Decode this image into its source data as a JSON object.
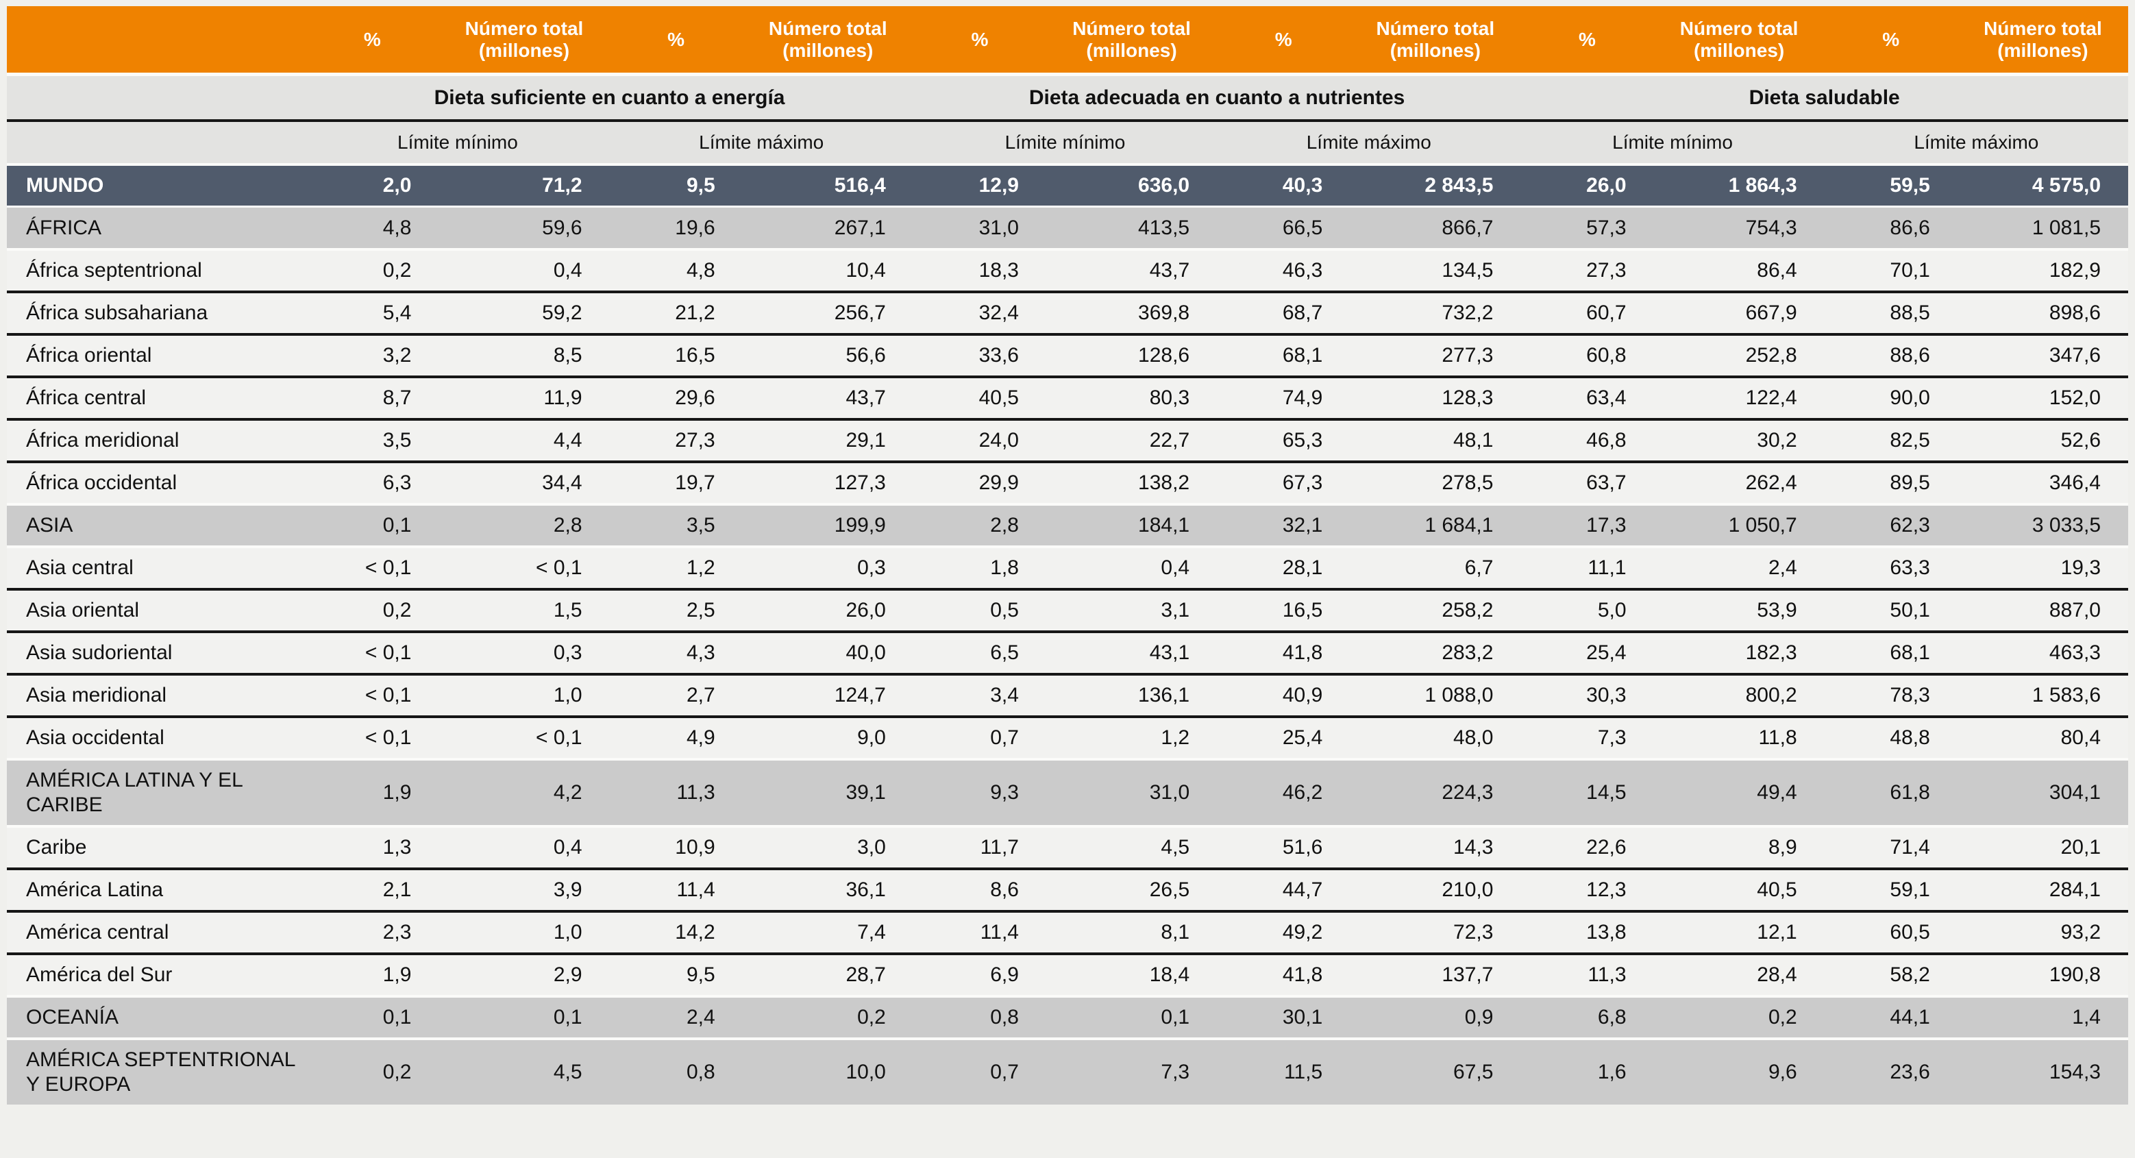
{
  "table": {
    "header": {
      "pct_label": "%",
      "total_label": "Número total (millones)"
    },
    "groups": [
      "Dieta suficiente en cuanto a energía",
      "Dieta adecuada en cuanto a nutrientes",
      "Dieta saludable"
    ],
    "limits": {
      "min": "Límite mínimo",
      "max": "Límite máximo"
    },
    "colors": {
      "header_orange": "#EF8200",
      "world_row": "#505B6C",
      "region_band": "#CBCBCB",
      "light_row": "#F2F2F0",
      "header_gray": "#E3E3E1"
    },
    "rows": [
      {
        "name": "MUNDO",
        "type": "world",
        "sep": "gap",
        "values": [
          "2,0",
          "71,2",
          "9,5",
          "516,4",
          "12,9",
          "636,0",
          "40,3",
          "2 843,5",
          "26,0",
          "1 864,3",
          "59,5",
          "4 575,0"
        ]
      },
      {
        "name": "ÁFRICA",
        "type": "band",
        "sep": "thin",
        "values": [
          "4,8",
          "59,6",
          "19,6",
          "267,1",
          "31,0",
          "413,5",
          "66,5",
          "866,7",
          "57,3",
          "754,3",
          "86,6",
          "1 081,5"
        ]
      },
      {
        "name": "África septentrional",
        "type": "light",
        "sep": "gap",
        "values": [
          "0,2",
          "0,4",
          "4,8",
          "10,4",
          "18,3",
          "43,7",
          "46,3",
          "134,5",
          "27,3",
          "86,4",
          "70,1",
          "182,9"
        ]
      },
      {
        "name": "África subsahariana",
        "type": "light",
        "sep": "line",
        "values": [
          "5,4",
          "59,2",
          "21,2",
          "256,7",
          "32,4",
          "369,8",
          "68,7",
          "732,2",
          "60,7",
          "667,9",
          "88,5",
          "898,6"
        ]
      },
      {
        "name": "África oriental",
        "type": "light",
        "sep": "line",
        "values": [
          "3,2",
          "8,5",
          "16,5",
          "56,6",
          "33,6",
          "128,6",
          "68,1",
          "277,3",
          "60,8",
          "252,8",
          "88,6",
          "347,6"
        ]
      },
      {
        "name": "África central",
        "type": "light",
        "sep": "line",
        "values": [
          "8,7",
          "11,9",
          "29,6",
          "43,7",
          "40,5",
          "80,3",
          "74,9",
          "128,3",
          "63,4",
          "122,4",
          "90,0",
          "152,0"
        ]
      },
      {
        "name": "África meridional",
        "type": "light",
        "sep": "line",
        "values": [
          "3,5",
          "4,4",
          "27,3",
          "29,1",
          "24,0",
          "22,7",
          "65,3",
          "48,1",
          "46,8",
          "30,2",
          "82,5",
          "52,6"
        ]
      },
      {
        "name": "África occidental",
        "type": "light",
        "sep": "line",
        "values": [
          "6,3",
          "34,4",
          "19,7",
          "127,3",
          "29,9",
          "138,2",
          "67,3",
          "278,5",
          "63,7",
          "262,4",
          "89,5",
          "346,4"
        ]
      },
      {
        "name": "ASIA",
        "type": "band",
        "sep": "gap",
        "values": [
          "0,1",
          "2,8",
          "3,5",
          "199,9",
          "2,8",
          "184,1",
          "32,1",
          "1 684,1",
          "17,3",
          "1 050,7",
          "62,3",
          "3 033,5"
        ]
      },
      {
        "name": "Asia central",
        "type": "light",
        "sep": "gap",
        "values": [
          "< 0,1",
          "< 0,1",
          "1,2",
          "0,3",
          "1,8",
          "0,4",
          "28,1",
          "6,7",
          "11,1",
          "2,4",
          "63,3",
          "19,3"
        ]
      },
      {
        "name": "Asia oriental",
        "type": "light",
        "sep": "line",
        "values": [
          "0,2",
          "1,5",
          "2,5",
          "26,0",
          "0,5",
          "3,1",
          "16,5",
          "258,2",
          "5,0",
          "53,9",
          "50,1",
          "887,0"
        ]
      },
      {
        "name": "Asia sudoriental",
        "type": "light",
        "sep": "line",
        "values": [
          "< 0,1",
          "0,3",
          "4,3",
          "40,0",
          "6,5",
          "43,1",
          "41,8",
          "283,2",
          "25,4",
          "182,3",
          "68,1",
          "463,3"
        ]
      },
      {
        "name": "Asia meridional",
        "type": "light",
        "sep": "line",
        "values": [
          "< 0,1",
          "1,0",
          "2,7",
          "124,7",
          "3,4",
          "136,1",
          "40,9",
          "1 088,0",
          "30,3",
          "800,2",
          "78,3",
          "1 583,6"
        ]
      },
      {
        "name": "Asia occidental",
        "type": "light",
        "sep": "line",
        "values": [
          "< 0,1",
          "< 0,1",
          "4,9",
          "9,0",
          "0,7",
          "1,2",
          "25,4",
          "48,0",
          "7,3",
          "11,8",
          "48,8",
          "80,4"
        ]
      },
      {
        "name": "AMÉRICA LATINA Y EL CARIBE",
        "type": "band",
        "sep": "gap",
        "values": [
          "1,9",
          "4,2",
          "11,3",
          "39,1",
          "9,3",
          "31,0",
          "46,2",
          "224,3",
          "14,5",
          "49,4",
          "61,8",
          "304,1"
        ]
      },
      {
        "name": "Caribe",
        "type": "light",
        "sep": "gap",
        "values": [
          "1,3",
          "0,4",
          "10,9",
          "3,0",
          "11,7",
          "4,5",
          "51,6",
          "14,3",
          "22,6",
          "8,9",
          "71,4",
          "20,1"
        ]
      },
      {
        "name": "América Latina",
        "type": "light",
        "sep": "line",
        "values": [
          "2,1",
          "3,9",
          "11,4",
          "36,1",
          "8,6",
          "26,5",
          "44,7",
          "210,0",
          "12,3",
          "40,5",
          "59,1",
          "284,1"
        ]
      },
      {
        "name": "América central",
        "type": "light",
        "sep": "line",
        "values": [
          "2,3",
          "1,0",
          "14,2",
          "7,4",
          "11,4",
          "8,1",
          "49,2",
          "72,3",
          "13,8",
          "12,1",
          "60,5",
          "93,2"
        ]
      },
      {
        "name": "América del Sur",
        "type": "light",
        "sep": "line",
        "values": [
          "1,9",
          "2,9",
          "9,5",
          "28,7",
          "6,9",
          "18,4",
          "41,8",
          "137,7",
          "11,3",
          "28,4",
          "58,2",
          "190,8"
        ]
      },
      {
        "name": "OCEANÍA",
        "type": "band",
        "sep": "gap",
        "values": [
          "0,1",
          "0,1",
          "2,4",
          "0,2",
          "0,8",
          "0,1",
          "30,1",
          "0,9",
          "6,8",
          "0,2",
          "44,1",
          "1,4"
        ]
      },
      {
        "name": "AMÉRICA SEPTENTRIONAL Y EUROPA",
        "type": "band",
        "sep": "gap",
        "values": [
          "0,2",
          "4,5",
          "0,8",
          "10,0",
          "0,7",
          "7,3",
          "11,5",
          "67,5",
          "1,6",
          "9,6",
          "23,6",
          "154,3"
        ]
      }
    ]
  }
}
